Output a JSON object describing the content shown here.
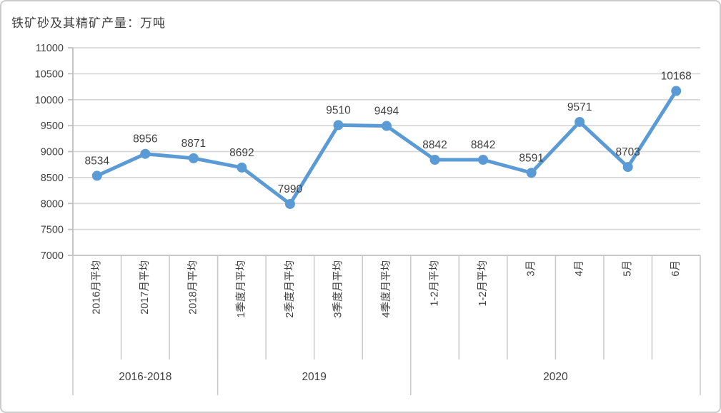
{
  "chart_data": {
    "type": "line",
    "title": "铁矿砂及其精矿产量：万吨",
    "unit": "万吨",
    "categories": [
      "2016月平均",
      "2017月平均",
      "2018月平均",
      "1季度月平均",
      "2季度月平均",
      "3季度月平均",
      "4季度月平均",
      "1-2月平均",
      "1-2月平均",
      "3月",
      "4月",
      "5月",
      "6月"
    ],
    "values": [
      8534,
      8956,
      8871,
      8692,
      7990,
      9510,
      9494,
      8842,
      8842,
      8591,
      9571,
      8703,
      10168
    ],
    "groups": [
      {
        "label": "2016-2018",
        "span": 3
      },
      {
        "label": "2019",
        "span": 4
      },
      {
        "label": "2020",
        "span": 6
      }
    ],
    "y_axis": {
      "min": 7000,
      "max": 11000,
      "step": 500,
      "ticks": [
        7000,
        7500,
        8000,
        8500,
        9000,
        9500,
        10000,
        10500,
        11000
      ]
    },
    "grid": true,
    "legend": "none",
    "data_labels": true,
    "colors": {
      "line": "#5B9BD5",
      "marker": "#5B9BD5",
      "grid": "#D8D8D8",
      "axis": "#BFBFBF",
      "text": "#404040"
    }
  }
}
